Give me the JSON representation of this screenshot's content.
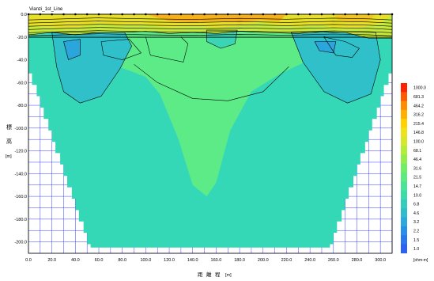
{
  "chart_data": {
    "type": "heatmap",
    "title": "Vianzi_1st_Line",
    "xlabel_chars": [
      "距",
      "離",
      "程",
      "[m]"
    ],
    "ylabel_chars": [
      "標",
      "高",
      "[m]"
    ],
    "x_ticks": [
      "0.0",
      "20.0",
      "40.0",
      "60.0",
      "80.0",
      "100.0",
      "120.0",
      "140.0",
      "160.0",
      "180.0",
      "200.0",
      "220.0",
      "240.0",
      "260.0",
      "280.0",
      "300.0"
    ],
    "y_ticks": [
      "0.0",
      "-20.0",
      "-40.0",
      "-60.0",
      "-80.0",
      "-100.0",
      "-120.0",
      "-140.0",
      "-160.0",
      "-180.0",
      "-200.0"
    ],
    "xlim": [
      0,
      310
    ],
    "ylim": [
      -210,
      0
    ],
    "grid": true,
    "legend_position": "right",
    "colorbar_unit": "[ohm-m]",
    "colorbar_values": [
      "1000.0",
      "681.3",
      "464.2",
      "316.2",
      "215.4",
      "146.8",
      "100.0",
      "68.1",
      "46.4",
      "31.6",
      "21.5",
      "14.7",
      "10.0",
      "6.8",
      "4.6",
      "3.2",
      "2.2",
      "1.5",
      "1.0"
    ],
    "colorbar_colors": [
      "#ff2200",
      "#ff5a00",
      "#ff8c00",
      "#ffb000",
      "#ffd200",
      "#f0e21a",
      "#d6e82a",
      "#b4ec3a",
      "#92ee4e",
      "#72ee66",
      "#5ceb7e",
      "#4ae496",
      "#3ddaaa",
      "#34ccbd",
      "#2fbccd",
      "#2ba8dc",
      "#2990e8",
      "#2a78ee",
      "#2b62f2"
    ],
    "electrodes_x": [
      0,
      10,
      20,
      30,
      40,
      50,
      60,
      70,
      80,
      90,
      100,
      110,
      120,
      130,
      140,
      150,
      160,
      170,
      180,
      190,
      200,
      210,
      220,
      230,
      240,
      250,
      260,
      270,
      280,
      290,
      300,
      310
    ]
  }
}
